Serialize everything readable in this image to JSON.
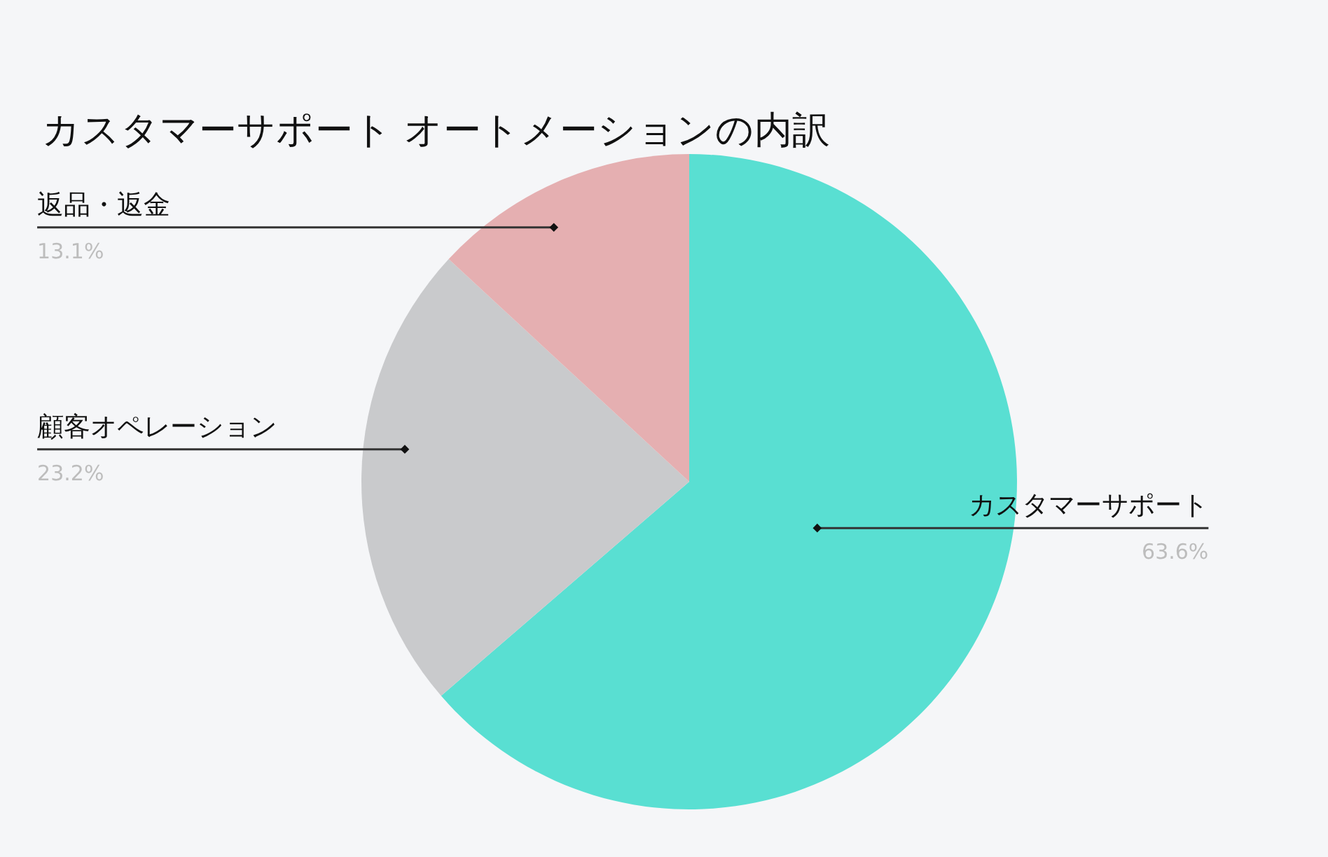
{
  "chart_data": {
    "type": "pie",
    "title": "カスタマーサポート オートメーションの内訳",
    "categories": [
      "カスタマーサポート",
      "顧客オペレーション",
      "返品・返金"
    ],
    "values": [
      63.6,
      23.2,
      13.1
    ],
    "colors": [
      "#59dfd2",
      "#c9cacc",
      "#e5afb1"
    ],
    "value_labels": [
      "63.6%",
      "23.2%",
      "13.1%"
    ]
  }
}
